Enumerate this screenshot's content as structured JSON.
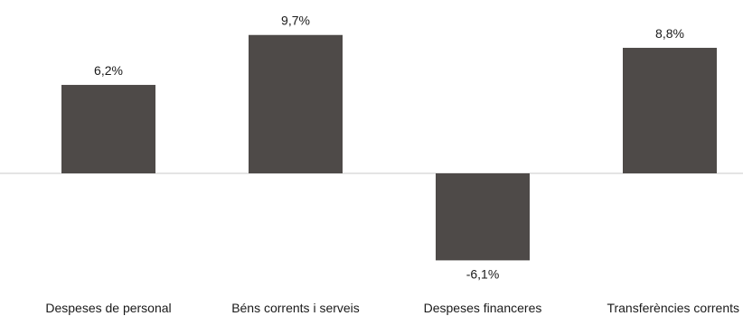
{
  "chart_data": {
    "type": "bar",
    "title": "",
    "xlabel": "",
    "ylabel": "",
    "categories": [
      "Despeses de personal",
      "Béns corrents i serveis",
      "Despeses financeres",
      "Transferències corrents"
    ],
    "values": [
      6.2,
      9.7,
      -6.1,
      8.8
    ],
    "value_labels": [
      "6,2%",
      "9,7%",
      "-6,1%",
      "8,8%"
    ],
    "ylim": [
      -6.5,
      10.5
    ],
    "grid": false,
    "legend": "none",
    "colors": {
      "bar": "#4e4a48",
      "baseline": "#c8c8c8",
      "text": "#1a1a1a"
    }
  }
}
